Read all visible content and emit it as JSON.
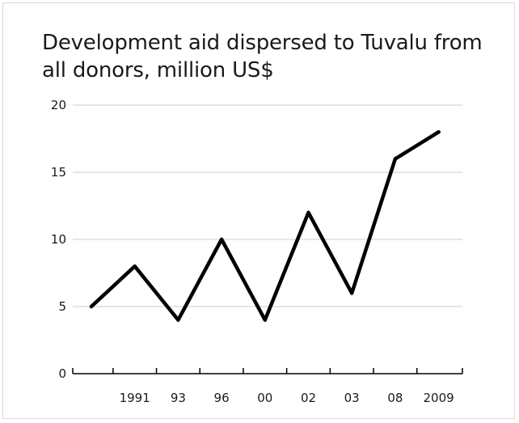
{
  "chart_data": {
    "type": "line",
    "title": "Development aid dispersed to Tuvalu from all donors, million US$",
    "xlabel": "",
    "ylabel": "",
    "ylim": [
      0,
      20
    ],
    "yticks": [
      0,
      5,
      10,
      15,
      20
    ],
    "grid": true,
    "legend": "none",
    "categories": [
      "",
      "1991",
      "93",
      "96",
      "00",
      "02",
      "03",
      "08",
      "2009"
    ],
    "series": [
      {
        "values": [
          5,
          8,
          4,
          10,
          4,
          12,
          6,
          16,
          18
        ],
        "color": "#000000"
      }
    ]
  }
}
